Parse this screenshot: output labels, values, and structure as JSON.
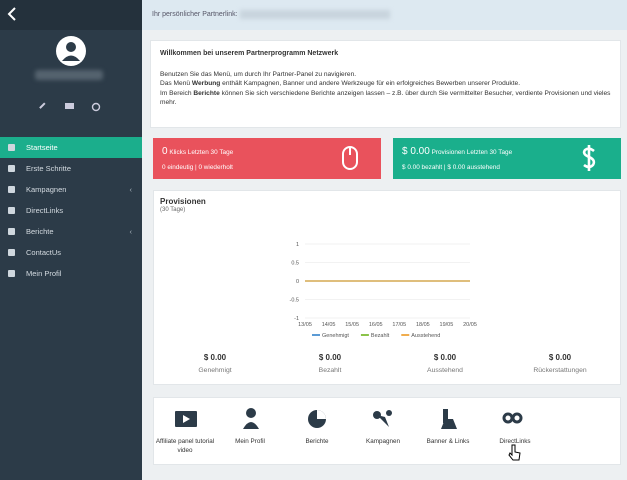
{
  "top_bar": {
    "label": "Ihr persönlicher Partnerlink:"
  },
  "menu": [
    "Startseite",
    "Erste Schritte",
    "Kampagnen",
    "DirectLinks",
    "Berichte",
    "ContactUs",
    "Mein Profil"
  ],
  "welcome": {
    "title": "Willkommen bei unserem Partnerprogramm Netzwerk",
    "line1": "Benutzen Sie das Menü, um durch Ihr Partner-Panel zu navigieren.",
    "line2": [
      "Das Menü ",
      "Werbung",
      " enthält Kampagnen, Banner und andere Werkzeuge für ein erfolgreiches Bewerben unserer Produkte."
    ],
    "line3": [
      "Im Bereich ",
      "Berichte",
      " können Sie sich verschiedene Berichte anzeigen lassen – z.B. über durch Sie vermittelter Besucher, verdiente Provisionen und vieles mehr."
    ]
  },
  "clicks_box": {
    "value": "0",
    "label": "Klicks Letzten 30 Tage",
    "detail": "0 eindeutig | 0 wiederholt"
  },
  "provisions_box": {
    "value": "$ 0.00",
    "label": "Provisionen Letzten 30 Tage",
    "detail": "$ 0.00 bezahlt | $ 0.00 ausstehend"
  },
  "provisions_panel": {
    "title": "Provisionen",
    "subtitle": "(30 Tage)",
    "totals": [
      {
        "value": "$ 0.00",
        "label": "Genehmigt"
      },
      {
        "value": "$ 0.00",
        "label": "Bezahlt"
      },
      {
        "value": "$ 0.00",
        "label": "Ausstehend"
      },
      {
        "value": "$ 0.00",
        "label": "Rückerstattungen"
      }
    ]
  },
  "chart_data": {
    "type": "line",
    "categories": [
      "13/05",
      "14/05",
      "15/05",
      "16/05",
      "17/05",
      "18/05",
      "19/05",
      "20/05"
    ],
    "series": [
      {
        "name": "Genehmigt",
        "color": "#5b9bd5",
        "values": [
          0,
          0,
          0,
          0,
          0,
          0,
          0,
          0
        ]
      },
      {
        "name": "Bezahlt",
        "color": "#8bc34a",
        "values": [
          0,
          0,
          0,
          0,
          0,
          0,
          0,
          0
        ]
      },
      {
        "name": "Ausstehend",
        "color": "#f0ad4e",
        "values": [
          0,
          0,
          0,
          0,
          0,
          0,
          0,
          0
        ]
      }
    ],
    "ylim": [
      -1,
      1
    ],
    "yticks": [
      -1,
      -0.5,
      0,
      0.5,
      1
    ],
    "grid": true
  },
  "quick_links": [
    "Affiliate panel tutorial video",
    "Mein Profil",
    "Berichte",
    "Kampagnen",
    "Banner & Links",
    "DirectLinks"
  ]
}
